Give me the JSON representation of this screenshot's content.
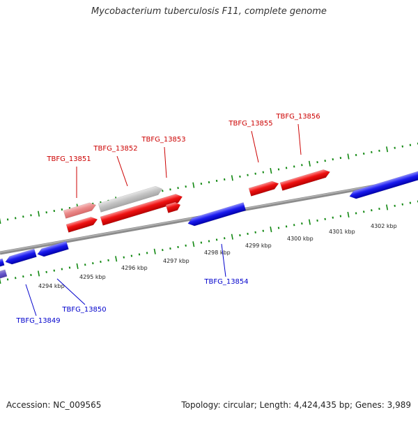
{
  "title": "Mycobacterium tuberculosis F11, complete genome",
  "footer": {
    "accession": "Accession: NC_009565",
    "summary": "Topology: circular; Length: 4,424,435 bp; Genes: 3,989"
  },
  "colors": {
    "forward_gene": "#ee1111",
    "reverse_gene": "#1a1aee",
    "forward_label": "#cc0000",
    "reverse_label": "#0000cc",
    "tick": "#118811",
    "backbone": "#808080"
  },
  "scale": {
    "tick_labels": [
      "4294 kbp",
      "4295 kbp",
      "4296 kbp",
      "4297 kbp",
      "4298 kbp",
      "4299 kbp",
      "4300 kbp",
      "4301 kbp",
      "4302 kbp"
    ]
  },
  "genes": {
    "forward_labels": [
      "TBFG_13851",
      "TBFG_13852",
      "TBFG_13853",
      "TBFG_13855",
      "TBFG_13856"
    ],
    "reverse_labels": [
      "TBFG_13849",
      "TBFG_13850",
      "TBFG_13854"
    ]
  }
}
